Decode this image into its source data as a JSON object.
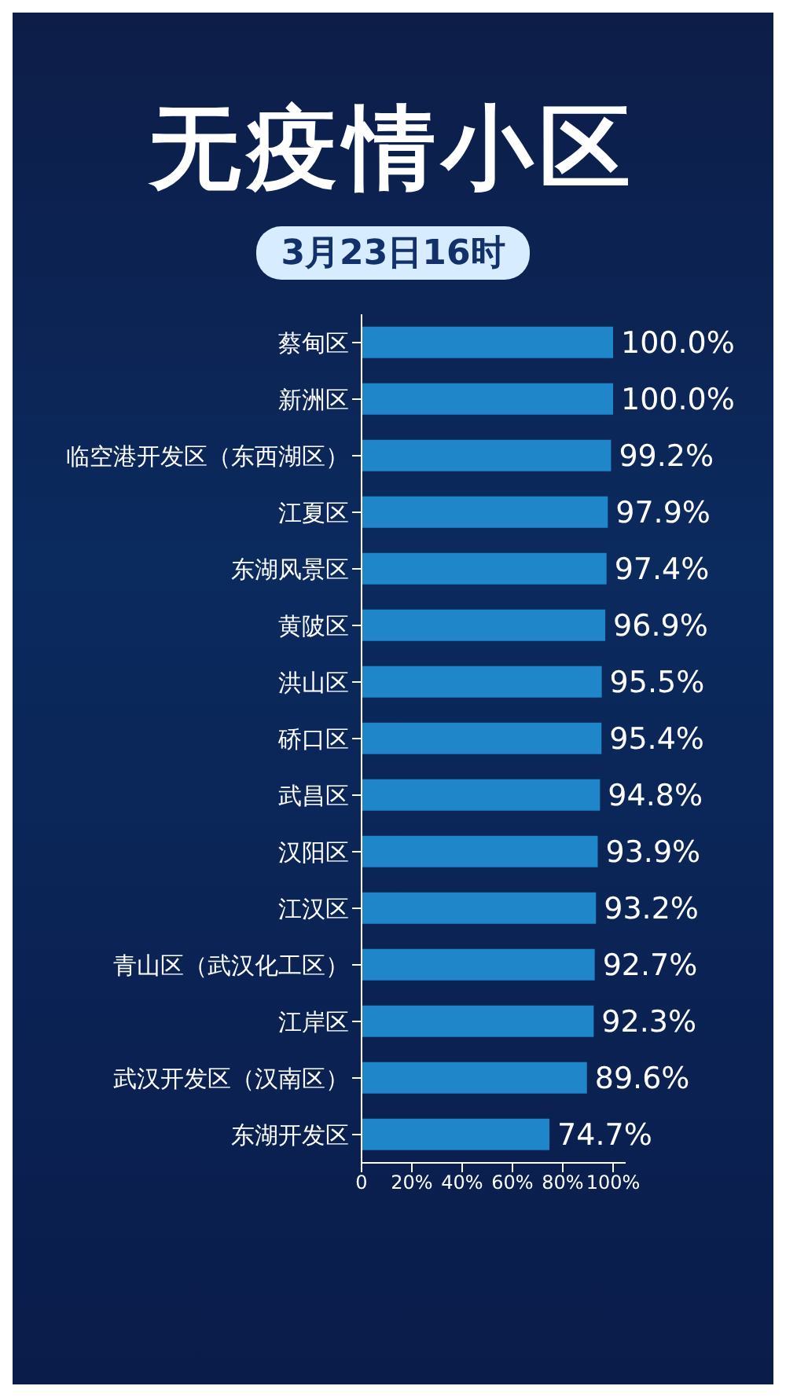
{
  "chart_data": {
    "type": "bar",
    "orientation": "horizontal",
    "title": "无疫情小区",
    "subtitle": "3月23日16时",
    "categories": [
      "蔡甸区",
      "新洲区",
      "临空港开发区（东西湖区）",
      "江夏区",
      "东湖风景区",
      "黄陂区",
      "洪山区",
      "硚口区",
      "武昌区",
      "汉阳区",
      "江汉区",
      "青山区（武汉化工区）",
      "江岸区",
      "武汉开发区（汉南区）",
      "东湖开发区"
    ],
    "values": [
      100.0,
      100.0,
      99.2,
      97.9,
      97.4,
      96.9,
      95.5,
      95.4,
      94.8,
      93.9,
      93.2,
      92.7,
      92.3,
      89.6,
      74.7
    ],
    "value_labels": [
      "100.0%",
      "100.0%",
      "99.2%",
      "97.9%",
      "97.4%",
      "96.9%",
      "95.5%",
      "95.4%",
      "94.8%",
      "93.9%",
      "93.2%",
      "92.7%",
      "92.3%",
      "89.6%",
      "74.7%"
    ],
    "color": "#1f86c9",
    "xlim": [
      0,
      105
    ],
    "xticks": [
      0,
      {
        "value": 20,
        "label": "20%"
      },
      {
        "value": 40,
        "label": "40%"
      },
      {
        "value": 60,
        "label": "60%"
      },
      {
        "value": 80,
        "label": "80%"
      },
      {
        "value": 100,
        "label": "100%"
      }
    ],
    "grid": false,
    "legend": false
  }
}
